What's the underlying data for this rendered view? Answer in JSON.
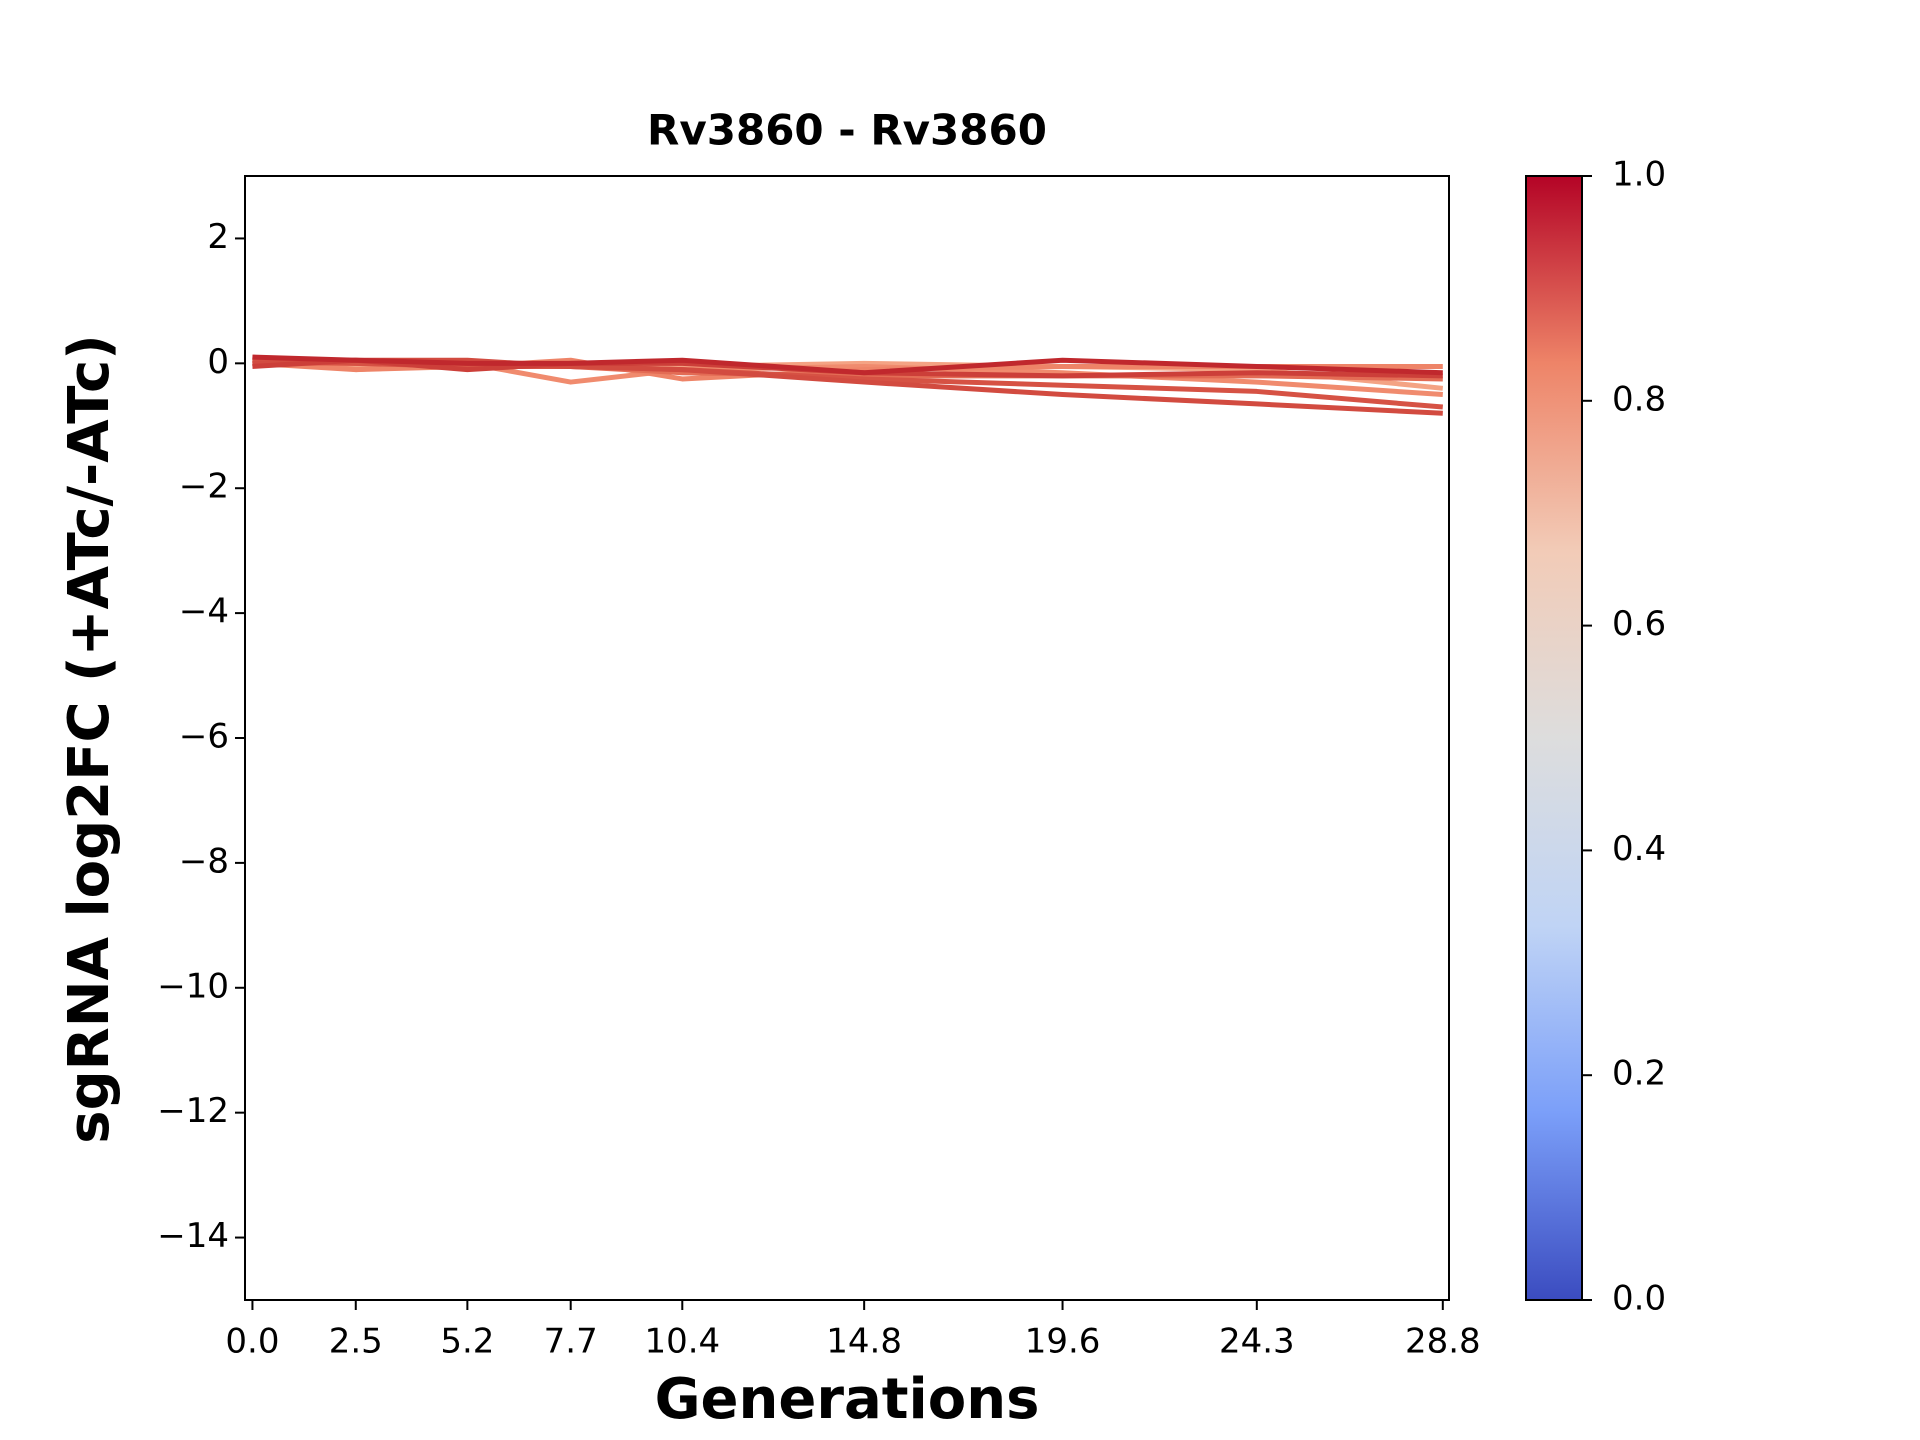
{
  "chart_data": {
    "type": "line",
    "title": "Rv3860 - Rv3860",
    "x_label": "Generations",
    "y_label": "sgRNA log2FC (+ATc/-ATc)",
    "x": [
      0.0,
      2.5,
      5.2,
      7.7,
      10.4,
      14.8,
      19.6,
      24.3,
      28.8
    ],
    "xlim": [
      -0.18,
      28.95
    ],
    "xticks": [
      {
        "value": 0,
        "label": "0.0"
      },
      2.5,
      5.2,
      7.7,
      10.4,
      14.8,
      19.6,
      24.3,
      28.8
    ],
    "ylim": [
      -15,
      3
    ],
    "yticks": [
      2,
      0,
      {
        "value": -2,
        "label": "−2"
      },
      {
        "value": -4,
        "label": "−4"
      },
      {
        "value": -6,
        "label": "−6"
      },
      {
        "value": -8,
        "label": "−8"
      },
      {
        "value": -10,
        "label": "−10"
      },
      {
        "value": -12,
        "label": "−12"
      },
      {
        "value": -14,
        "label": "−14"
      }
    ],
    "series": [
      {
        "color": "#f4a384",
        "values": [
          0.05,
          -0.05,
          0.0,
          0.0,
          -0.05,
          0.0,
          -0.05,
          -0.1,
          -0.4
        ]
      },
      {
        "color": "#f08b6e",
        "values": [
          0.1,
          -0.1,
          0.0,
          -0.3,
          -0.1,
          -0.05,
          -0.15,
          -0.3,
          -0.5
        ]
      },
      {
        "color": "#ee8468",
        "values": [
          0.0,
          -0.1,
          -0.05,
          0.05,
          -0.25,
          -0.1,
          -0.05,
          -0.05,
          -0.05
        ]
      },
      {
        "color": "#e36c55",
        "values": [
          0.0,
          0.0,
          0.0,
          -0.05,
          -0.15,
          -0.2,
          -0.2,
          -0.2,
          -0.25
        ]
      },
      {
        "color": "#d65244",
        "values": [
          0.05,
          0.0,
          -0.05,
          -0.05,
          -0.1,
          -0.25,
          -0.35,
          -0.45,
          -0.7
        ]
      },
      {
        "color": "#d24b40",
        "values": [
          0.0,
          0.05,
          0.05,
          -0.05,
          -0.1,
          -0.3,
          -0.5,
          -0.65,
          -0.8
        ]
      },
      {
        "color": "#cc3f39",
        "values": [
          -0.05,
          0.05,
          -0.1,
          0.0,
          0.0,
          -0.15,
          -0.2,
          -0.15,
          -0.2
        ]
      },
      {
        "color": "#c0282d",
        "values": [
          0.1,
          0.05,
          0.0,
          0.0,
          0.05,
          -0.15,
          0.05,
          -0.05,
          -0.15
        ]
      }
    ],
    "colorbar": {
      "lim": [
        0,
        1
      ],
      "ticks": [
        {
          "value": 0,
          "label": "0.0"
        },
        0.2,
        0.4,
        0.6,
        0.8,
        {
          "value": 1,
          "label": "1.0"
        }
      ],
      "colors": [
        "#3b4cc0",
        "#7b9ff9",
        "#c0d4f5",
        "#dddddd",
        "#f2cbb7",
        "#ee8468",
        "#b40426"
      ]
    }
  }
}
